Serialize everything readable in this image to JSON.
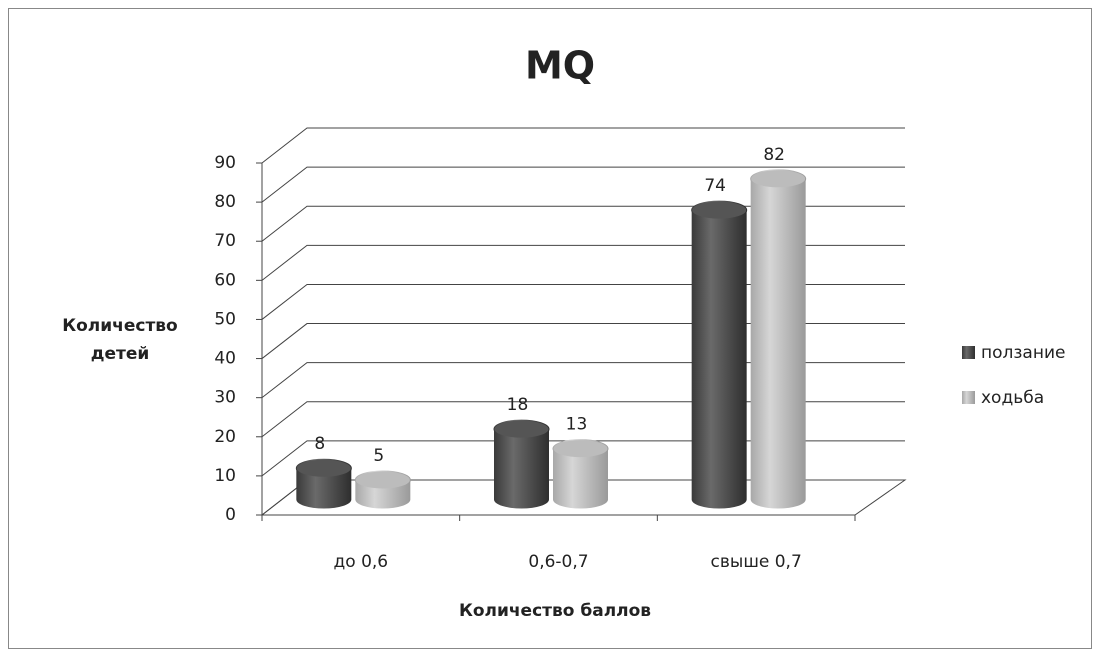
{
  "chart_data": {
    "type": "bar3d",
    "title": "MQ",
    "x_label": "Количество баллов",
    "y_label": "Количество детей",
    "categories": [
      "до 0,6",
      "0,6-0,7",
      "свыше 0,7"
    ],
    "series": [
      {
        "name": "ползание",
        "color": "#555555",
        "values": [
          8,
          18,
          74
        ]
      },
      {
        "name": "ходьба",
        "color": "#bcbcbc",
        "values": [
          5,
          13,
          82
        ]
      }
    ],
    "ylim": [
      0,
      90
    ],
    "yticks": [
      0,
      10,
      20,
      30,
      40,
      50,
      60,
      70,
      80,
      90
    ],
    "grid": true,
    "legend": "right"
  }
}
